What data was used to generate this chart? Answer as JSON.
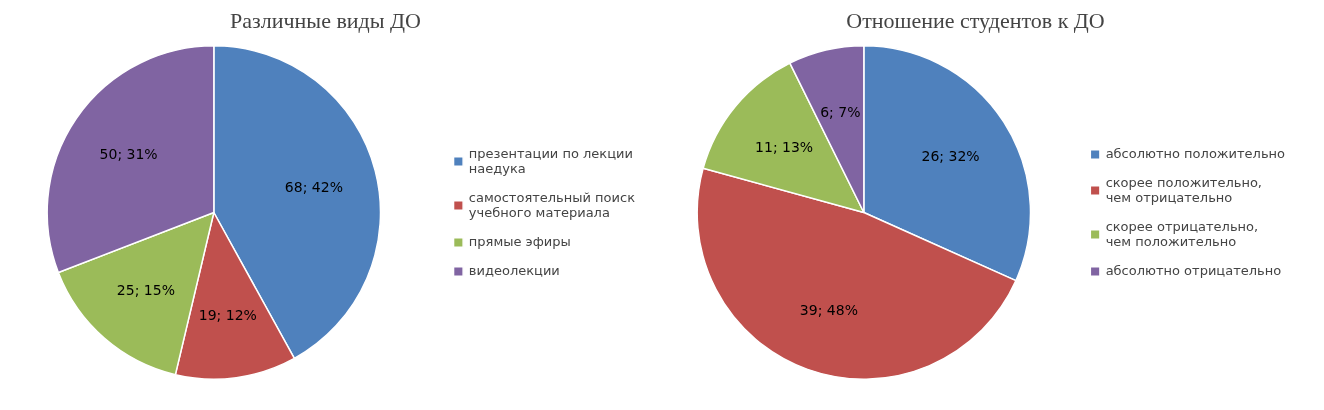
{
  "chart_data": [
    {
      "type": "pie",
      "title": "Различные виды ДО",
      "categories": [
        "презентации по лекции наедука",
        "самостоятельный поиск учебного материала",
        "прямые эфиры",
        "видеолекции"
      ],
      "values": [
        68,
        19,
        25,
        50
      ],
      "colors": [
        "#4f81bd",
        "#c0504d",
        "#9bbb59",
        "#8064a2"
      ],
      "value_labels": [
        "68; 42%",
        "19; 12%",
        "25; 15%",
        "50; 31%"
      ],
      "legend": "right"
    },
    {
      "type": "pie",
      "title": "Отношение студентов к ДО",
      "categories": [
        "абсолютно положительно",
        "скорее положительно, чем отрицательно",
        "скорее отрицательно, чем положительно",
        "абсолютно отрицательно"
      ],
      "values": [
        26,
        39,
        11,
        6
      ],
      "colors": [
        "#4f81bd",
        "#c0504d",
        "#9bbb59",
        "#8064a2"
      ],
      "value_labels": [
        "26; 32%",
        "39; 48%",
        "11; 13%",
        "6; 7%"
      ],
      "legend": "right"
    }
  ]
}
